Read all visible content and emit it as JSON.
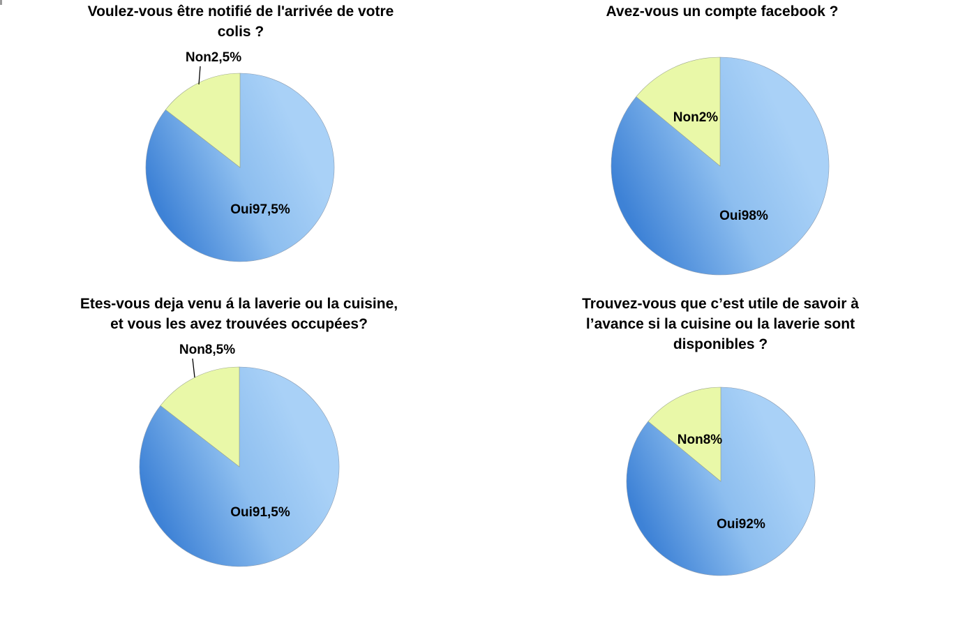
{
  "chart_data": [
    {
      "type": "pie",
      "title": "Voulez-vous être notifié de l'arrivée de votre colis  ?",
      "title_lines": [
        "Voulez-vous être notifié de l'arrivée de votre",
        "colis  ?"
      ],
      "slices": [
        {
          "label": "Oui",
          "value": 97.5,
          "text": "Oui97,5%",
          "color": "#a9d1f7"
        },
        {
          "label": "Non",
          "value": 2.5,
          "text": "Non2,5%",
          "color": "#e9f8a8"
        }
      ]
    },
    {
      "type": "pie",
      "title": "Avez-vous un compte facebook  ?",
      "title_lines": [
        "Avez-vous un compte facebook  ?"
      ],
      "slices": [
        {
          "label": "Oui",
          "value": 98,
          "text": "Oui98%",
          "color": "#a9d1f7"
        },
        {
          "label": "Non",
          "value": 2,
          "text": "Non2%",
          "color": "#e9f8a8"
        }
      ]
    },
    {
      "type": "pie",
      "title": "Etes-vous deja venu á la laverie ou la cuisine, et vous les avez trouvées occupées?",
      "title_lines": [
        "Etes-vous deja venu á la laverie ou la cuisine,",
        "et vous les avez trouvées occupées?"
      ],
      "slices": [
        {
          "label": "Oui",
          "value": 91.5,
          "text": "Oui91,5%",
          "color": "#a9d1f7"
        },
        {
          "label": "Non",
          "value": 8.5,
          "text": "Non8,5%",
          "color": "#e9f8a8"
        }
      ]
    },
    {
      "type": "pie",
      "title": "Trouvez-vous que c’est utile de savoir à l’avance si la cuisine ou la laverie sont disponibles ?",
      "title_lines": [
        "Trouvez-vous que c’est utile de savoir à",
        "l’avance si la cuisine ou la laverie sont",
        "disponibles ?"
      ],
      "slices": [
        {
          "label": "Oui",
          "value": 92,
          "text": "Oui92%",
          "color": "#a9d1f7"
        },
        {
          "label": "Non",
          "value": 8,
          "text": "Non8%",
          "color": "#e9f8a8"
        }
      ]
    }
  ]
}
